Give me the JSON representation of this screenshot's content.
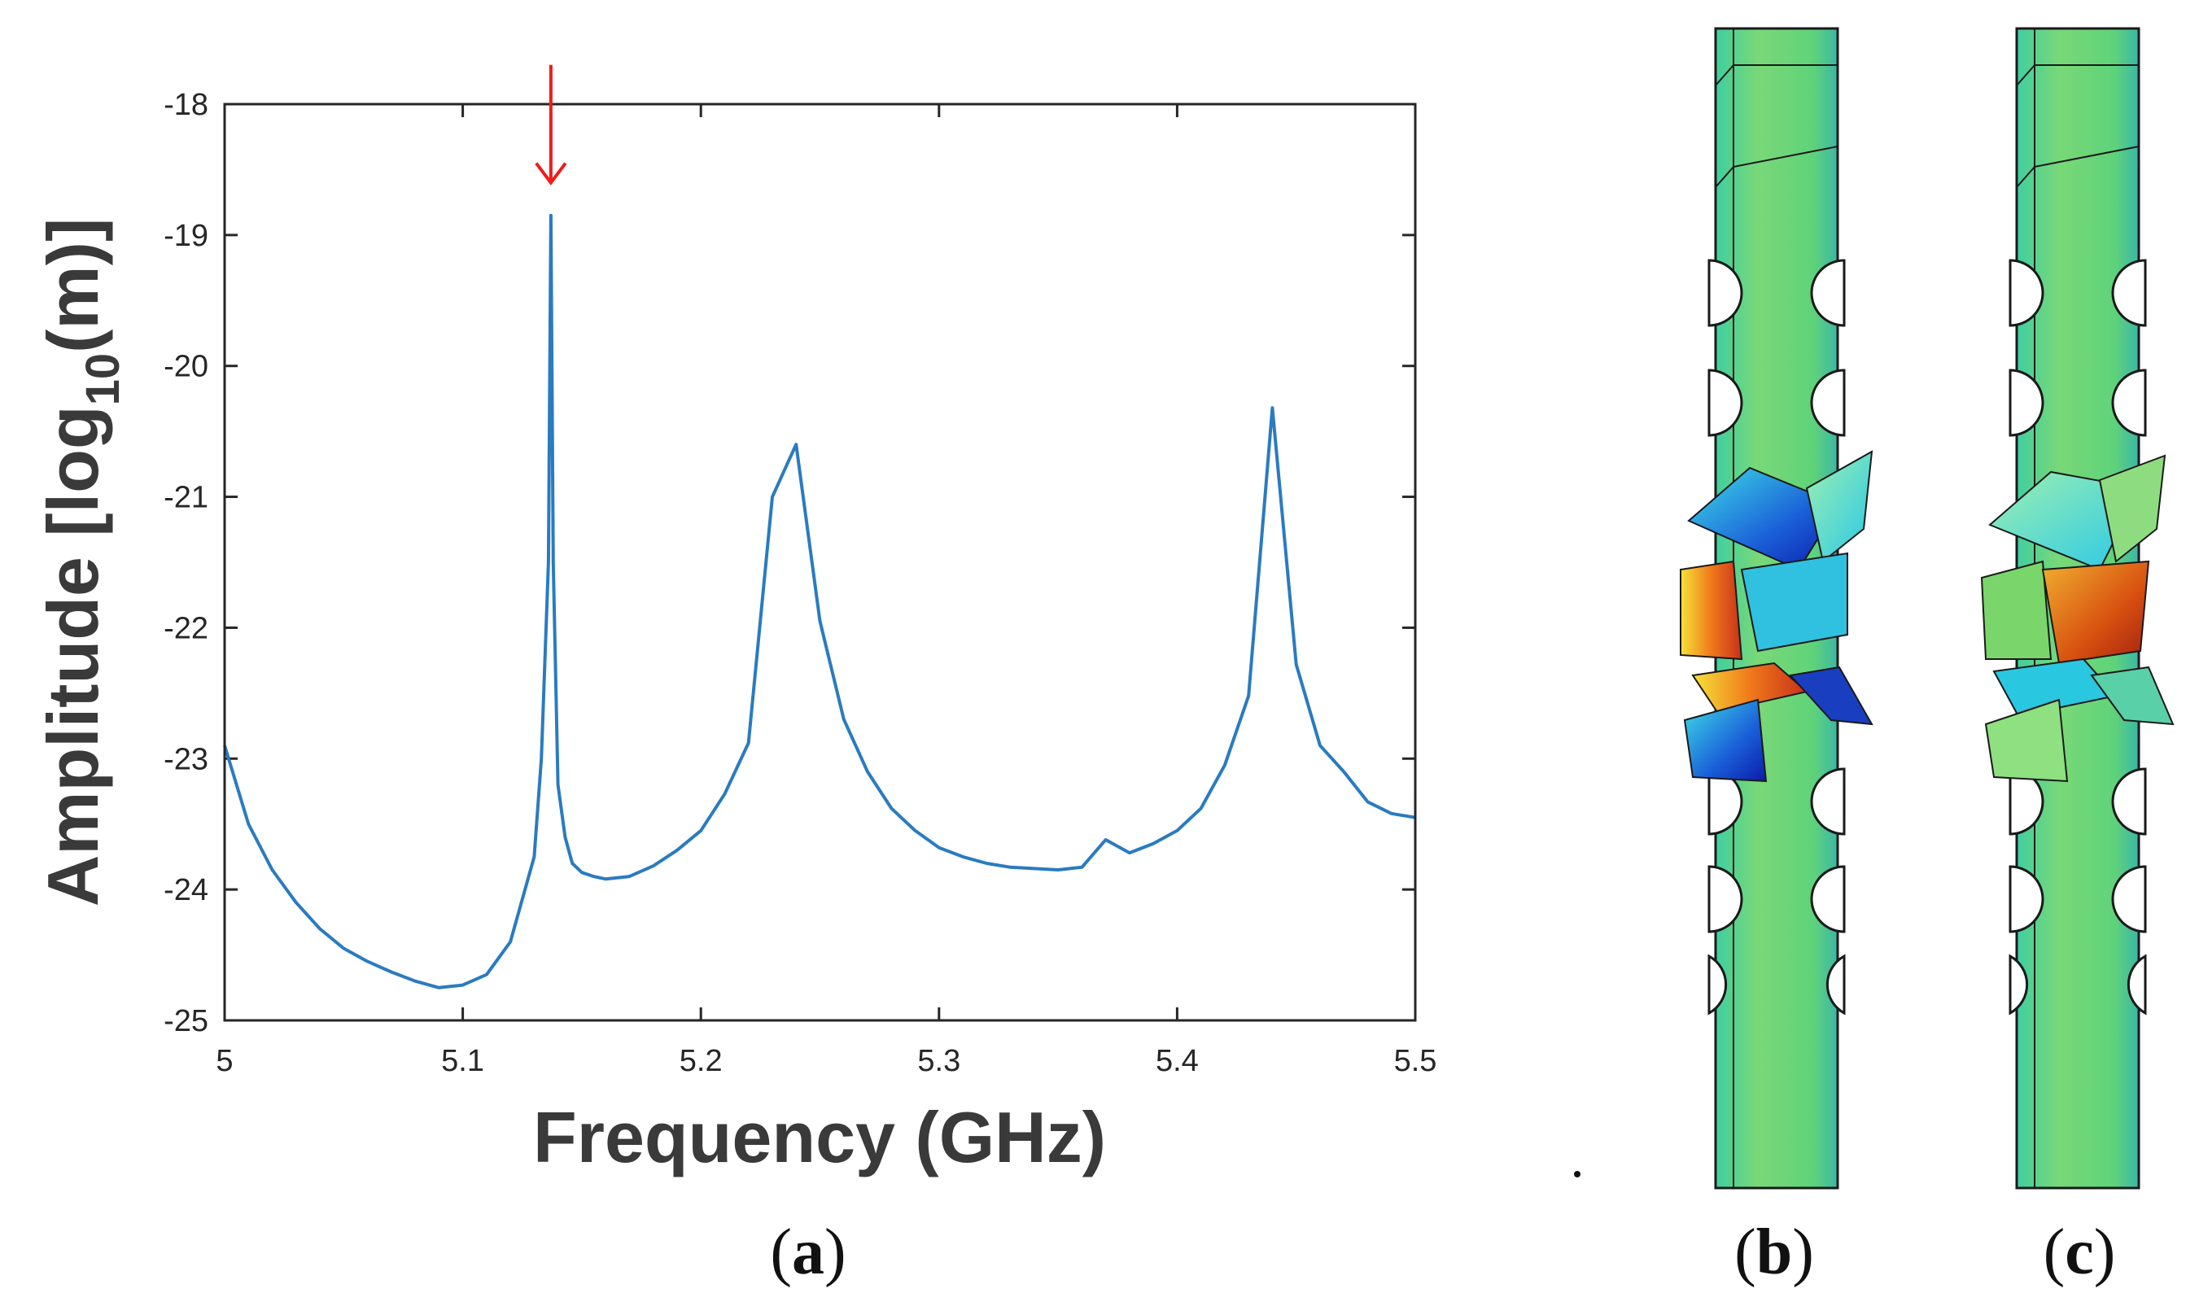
{
  "chart_data": {
    "type": "line",
    "xlabel": "Frequency (GHz)",
    "ylabel_main": "Amplitude [log",
    "ylabel_sub": "10",
    "ylabel_tail": "(m)]",
    "xlim": [
      5.0,
      5.5
    ],
    "ylim": [
      -25,
      -18
    ],
    "x_ticks": [
      5.0,
      5.1,
      5.2,
      5.3,
      5.4,
      5.5
    ],
    "x_tick_labels": [
      "5",
      "5.1",
      "5.2",
      "5.3",
      "5.4",
      "5.5"
    ],
    "y_ticks": [
      -18,
      -19,
      -20,
      -21,
      -22,
      -23,
      -24,
      -25
    ],
    "y_tick_labels": [
      "-18",
      "-19",
      "-20",
      "-21",
      "-22",
      "-23",
      "-24",
      "-25"
    ],
    "grid": false,
    "series": [
      {
        "name": "Amplitude",
        "color": "#2a7bc0",
        "x": [
          5.0,
          5.01,
          5.02,
          5.03,
          5.04,
          5.05,
          5.06,
          5.07,
          5.08,
          5.09,
          5.1,
          5.11,
          5.12,
          5.13,
          5.133,
          5.136,
          5.137,
          5.138,
          5.14,
          5.143,
          5.146,
          5.15,
          5.155,
          5.16,
          5.17,
          5.18,
          5.19,
          5.2,
          5.21,
          5.22,
          5.23,
          5.24,
          5.25,
          5.26,
          5.27,
          5.28,
          5.29,
          5.3,
          5.31,
          5.32,
          5.33,
          5.34,
          5.35,
          5.36,
          5.37,
          5.38,
          5.39,
          5.4,
          5.41,
          5.42,
          5.43,
          5.44,
          5.45,
          5.46,
          5.47,
          5.48,
          5.49,
          5.5
        ],
        "y": [
          -22.9,
          -23.5,
          -23.85,
          -24.1,
          -24.3,
          -24.45,
          -24.55,
          -24.63,
          -24.7,
          -24.75,
          -24.73,
          -24.65,
          -24.4,
          -23.75,
          -23.0,
          -21.5,
          -18.85,
          -21.5,
          -23.2,
          -23.6,
          -23.8,
          -23.87,
          -23.9,
          -23.92,
          -23.9,
          -23.82,
          -23.7,
          -23.55,
          -23.27,
          -22.88,
          -21.0,
          -20.6,
          -21.95,
          -22.7,
          -23.1,
          -23.38,
          -23.55,
          -23.68,
          -23.75,
          -23.8,
          -23.83,
          -23.84,
          -23.85,
          -23.83,
          -23.62,
          -23.72,
          -23.65,
          -23.55,
          -23.38,
          -23.05,
          -22.52,
          -20.32,
          -22.28,
          -22.9,
          -23.1,
          -23.33,
          -23.42,
          -23.45
        ]
      }
    ],
    "annotations": [
      {
        "type": "arrow",
        "color": "#ee1c1c",
        "x": 5.137,
        "y_from": -17.7,
        "y_to": -18.6
      }
    ]
  },
  "panels": {
    "a": {
      "open": "(",
      "letter": "a",
      "close": ")"
    },
    "b": {
      "open": "(",
      "letter": "b",
      "close": ")"
    },
    "c": {
      "open": "(",
      "letter": "c",
      "close": ")"
    }
  },
  "mode_shapes": [
    {
      "name": "mode-shape-b",
      "twist_color": "#1a55d0",
      "hot_color": "#e83020"
    },
    {
      "name": "mode-shape-c",
      "twist_color": "#30c8e0",
      "hot_color": "#c83010"
    }
  ],
  "colors": {
    "axis": "#262626",
    "model_base": "#6cd46c"
  }
}
